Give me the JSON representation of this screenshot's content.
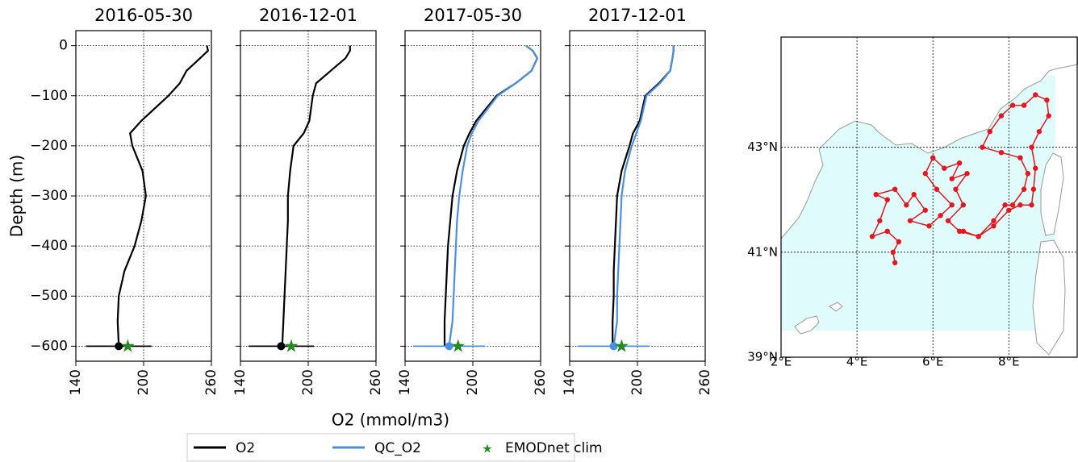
{
  "chart_data": [
    {
      "type": "profile",
      "title": "2016-05-30",
      "ylabel": "Depth (m)",
      "xlim": [
        140,
        260
      ],
      "ylim": [
        -630,
        30
      ],
      "xticks": [
        140,
        200,
        260
      ],
      "yticks": [
        0,
        {
          "value": -100,
          "label": "−100"
        },
        {
          "value": -200,
          "label": "−200"
        },
        {
          "value": -300,
          "label": "−300"
        },
        {
          "value": -400,
          "label": "−400"
        },
        {
          "value": -500,
          "label": "−500"
        },
        {
          "value": -600,
          "label": "−600"
        }
      ],
      "depth": [
        0,
        -10,
        -25,
        -50,
        -75,
        -100,
        -150,
        -175,
        -200,
        -250,
        -300,
        -350,
        -400,
        -450,
        -500,
        -550,
        -600
      ],
      "series": [
        {
          "color": "#000000",
          "values": [
            256,
            257,
            250,
            238,
            232,
            222,
            198,
            188,
            190,
            199,
            202,
            198,
            192,
            183,
            178,
            177,
            178
          ]
        }
      ],
      "mean": {
        "value": 178,
        "depth": -600,
        "xerr": 29,
        "color": "#000000"
      },
      "clim": {
        "value": 186,
        "depth": -600,
        "color": "#228b22"
      }
    },
    {
      "type": "profile",
      "title": "2016-12-01",
      "xlabel": "O2 (mmol/m3)",
      "xlim": [
        140,
        260
      ],
      "ylim": [
        -630,
        30
      ],
      "xticks": [
        140,
        200,
        260
      ],
      "yticks": [
        0,
        -100,
        -200,
        -300,
        -400,
        -500,
        -600
      ],
      "depth": [
        0,
        -10,
        -25,
        -50,
        -75,
        -100,
        -150,
        -175,
        -200,
        -250,
        -300,
        -350,
        -400,
        -450,
        -500,
        -550,
        -600
      ],
      "series": [
        {
          "color": "#000000",
          "values": [
            237,
            237,
            233,
            220,
            207,
            204,
            201,
            196,
            187,
            184,
            182,
            182,
            181,
            180,
            179,
            178,
            177
          ]
        }
      ],
      "mean": {
        "value": 176,
        "depth": -600,
        "xerr": 29,
        "color": "#000000"
      },
      "clim": {
        "value": 185,
        "depth": -600,
        "color": "#228b22"
      }
    },
    {
      "type": "profile",
      "title": "2017-05-30",
      "xlim": [
        140,
        260
      ],
      "ylim": [
        -630,
        30
      ],
      "xticks": [
        140,
        200,
        260
      ],
      "yticks": [
        0,
        -100,
        -200,
        -300,
        -400,
        -500,
        -600
      ],
      "depth": [
        0,
        -10,
        -25,
        -50,
        -75,
        -100,
        -150,
        -175,
        -200,
        -250,
        -300,
        -350,
        -400,
        -450,
        -500,
        -550,
        -600
      ],
      "series": [
        {
          "name": "O2",
          "color": "#000000",
          "values": [
            247,
            253,
            257,
            252,
            238,
            221,
            203,
            197,
            192,
            186,
            182,
            180,
            178,
            177,
            176,
            175,
            175
          ]
        },
        {
          "name": "QC_O2",
          "color": "#4a90e2",
          "values": [
            247,
            253,
            257,
            252,
            238,
            222,
            205,
            199,
            195,
            191,
            188,
            186,
            185,
            184,
            183,
            182,
            179
          ]
        }
      ],
      "mean": {
        "value": 179,
        "depth": -600,
        "xerr": 32,
        "color": "#4a90e2"
      },
      "clim": {
        "name": "EMODnet clim",
        "value": 187,
        "depth": -600,
        "color": "#228b22"
      }
    },
    {
      "type": "profile",
      "title": "2017-12-01",
      "xlim": [
        140,
        260
      ],
      "ylim": [
        -630,
        30
      ],
      "xticks": [
        140,
        200,
        260
      ],
      "yticks": [
        0,
        -100,
        -200,
        -300,
        -400,
        -500,
        -600
      ],
      "depth": [
        0,
        -10,
        -25,
        -50,
        -75,
        -100,
        -150,
        -175,
        -200,
        -250,
        -300,
        -350,
        -400,
        -450,
        -500,
        -550,
        -600
      ],
      "series": [
        {
          "color": "#000000",
          "values": [
            232,
            232,
            231,
            229,
            219,
            207,
            202,
            196,
            193,
            186,
            182,
            181,
            180,
            179,
            179,
            178,
            178
          ]
        },
        {
          "color": "#4a90e2",
          "values": [
            232,
            232,
            231,
            229,
            220,
            208,
            203,
            199,
            195,
            189,
            186,
            185,
            184,
            183,
            182,
            182,
            179
          ]
        }
      ],
      "mean": {
        "value": 179,
        "depth": -600,
        "xerr": 32,
        "color": "#4a90e2"
      },
      "clim": {
        "value": 186,
        "depth": -600,
        "color": "#228b22"
      }
    },
    {
      "type": "map",
      "xlim": [
        2,
        9.8
      ],
      "ylim": [
        39,
        45.1
      ],
      "grid": true,
      "xticks": [
        {
          "value": 2,
          "label": "2°E"
        },
        {
          "value": 4,
          "label": "4°E"
        },
        {
          "value": 6,
          "label": "6°E"
        },
        {
          "value": 8,
          "label": "8°E"
        }
      ],
      "yticks": [
        {
          "value": 39,
          "label": "39°N"
        },
        {
          "value": 41,
          "label": "41°N"
        },
        {
          "value": 43,
          "label": "43°N"
        }
      ],
      "track": {
        "color": "#e8141e",
        "x": [
          5.0,
          4.95,
          5.1,
          4.8,
          4.4,
          4.6,
          4.8,
          4.5,
          5.0,
          5.3,
          5.5,
          5.8,
          5.4,
          5.9,
          6.2,
          6.5,
          6.1,
          5.8,
          6.0,
          6.3,
          6.7,
          6.5,
          6.9,
          6.6,
          6.8,
          6.4,
          6.7,
          7.2,
          7.6,
          7.9,
          8.1,
          8.4,
          8.5,
          8.3,
          7.8,
          7.3,
          7.5,
          7.8,
          8.1,
          8.4,
          8.7,
          9.0,
          9.05,
          8.8,
          8.6,
          8.7,
          8.65,
          8.6,
          8.3,
          8.0,
          7.6,
          7.2,
          6.8
        ],
        "y": [
          40.8,
          41.0,
          41.2,
          41.4,
          41.3,
          41.6,
          42.0,
          42.1,
          42.2,
          41.9,
          42.1,
          41.8,
          41.6,
          41.5,
          41.7,
          41.9,
          42.2,
          42.5,
          42.8,
          42.6,
          42.7,
          42.4,
          42.5,
          42.2,
          41.9,
          41.6,
          41.4,
          41.3,
          41.6,
          41.9,
          41.9,
          42.2,
          42.5,
          42.8,
          42.9,
          43.0,
          43.3,
          43.6,
          43.8,
          43.8,
          44.0,
          43.9,
          43.6,
          43.3,
          43.0,
          42.6,
          42.2,
          41.9,
          41.9,
          41.8,
          41.5,
          41.3,
          41.4
        ]
      }
    }
  ]
}
